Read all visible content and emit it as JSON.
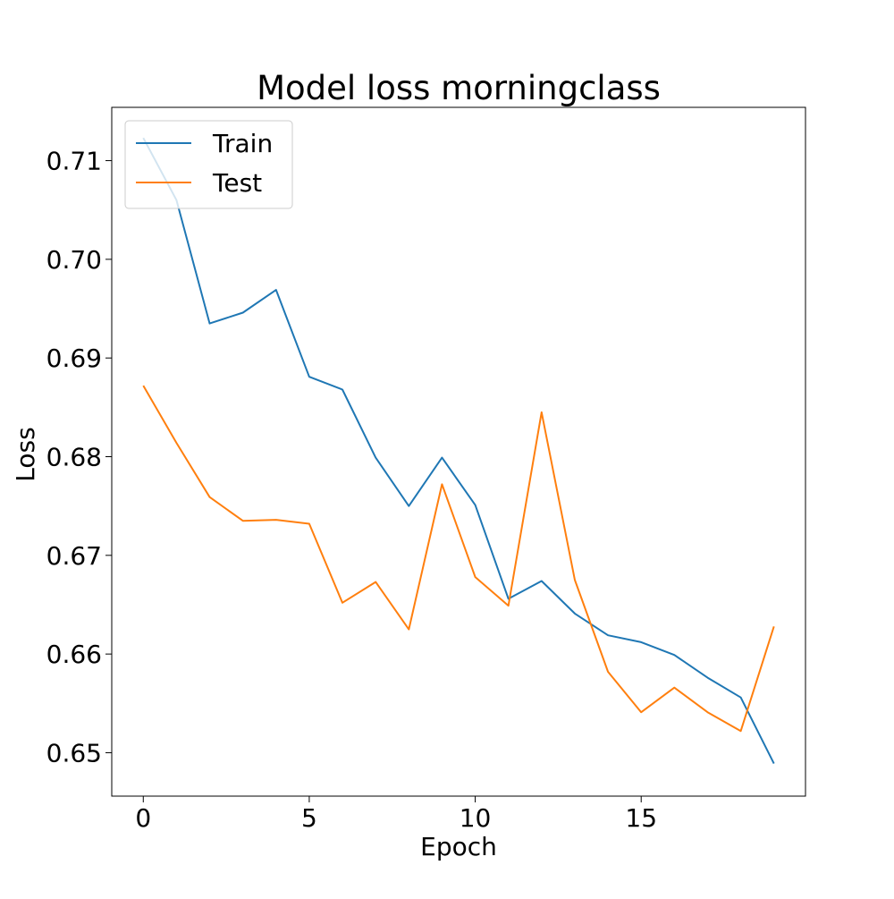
{
  "chart_data": {
    "type": "line",
    "title": "Model loss morningclass",
    "xlabel": "Epoch",
    "ylabel": "Loss",
    "x": [
      0,
      1,
      2,
      3,
      4,
      5,
      6,
      7,
      8,
      9,
      10,
      11,
      12,
      13,
      14,
      15,
      16,
      17,
      18,
      19
    ],
    "xlim": [
      -0.95,
      19.95
    ],
    "ylim": [
      0.6456,
      0.7154
    ],
    "xticks": [
      0,
      5,
      10,
      15
    ],
    "yticks": [
      0.65,
      0.66,
      0.67,
      0.68,
      0.69,
      0.7,
      0.71
    ],
    "xtick_labels": [
      "0",
      "5",
      "10",
      "15"
    ],
    "ytick_labels": [
      "0.65",
      "0.66",
      "0.67",
      "0.68",
      "0.69",
      "0.70",
      "0.71"
    ],
    "grid": false,
    "legend_position": "top-left",
    "series": [
      {
        "name": "Train",
        "color": "#1f77b4",
        "values": [
          0.7123,
          0.706,
          0.6935,
          0.6946,
          0.6969,
          0.6881,
          0.6868,
          0.6799,
          0.675,
          0.6799,
          0.6751,
          0.6656,
          0.6674,
          0.6641,
          0.6619,
          0.6612,
          0.6599,
          0.6576,
          0.6556,
          0.6489
        ]
      },
      {
        "name": "Test",
        "color": "#ff7f0e",
        "values": [
          0.6872,
          0.6814,
          0.6759,
          0.6735,
          0.6736,
          0.6732,
          0.6652,
          0.6673,
          0.6625,
          0.6772,
          0.6678,
          0.6649,
          0.6845,
          0.6675,
          0.6582,
          0.6541,
          0.6566,
          0.6541,
          0.6522,
          0.6628
        ]
      }
    ]
  }
}
